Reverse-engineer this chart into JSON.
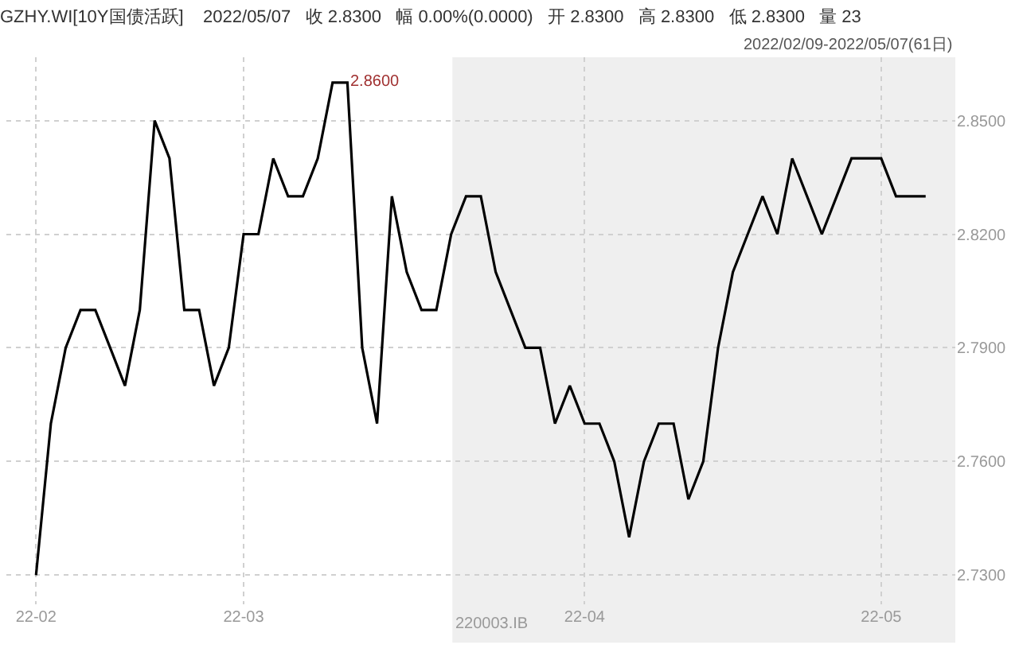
{
  "chart_data": {
    "type": "line",
    "title": "GZHY.WI[10Y国债活跃]    2022/05/07   收 2.8300   幅 0.00%(0.0000)   开 2.8300   高 2.8300   低 2.8300   量 23",
    "subtitle": "2022/02/09-2022/05/07(61日)",
    "categories": [
      "22-02",
      null,
      null,
      null,
      null,
      null,
      null,
      null,
      null,
      null,
      null,
      null,
      null,
      null,
      "22-03",
      null,
      null,
      null,
      null,
      null,
      null,
      null,
      null,
      null,
      null,
      null,
      null,
      null,
      null,
      null,
      null,
      null,
      null,
      null,
      null,
      null,
      null,
      "22-04",
      null,
      null,
      null,
      null,
      null,
      null,
      null,
      null,
      null,
      null,
      null,
      null,
      null,
      null,
      null,
      null,
      null,
      null,
      null,
      "22-05",
      null,
      null,
      null
    ],
    "series": [
      {
        "color": "#000000",
        "values": [
          2.73,
          2.77,
          2.79,
          2.8,
          2.8,
          2.79,
          2.78,
          2.8,
          2.85,
          2.84,
          2.8,
          2.8,
          2.78,
          2.79,
          2.82,
          2.82,
          2.84,
          2.83,
          2.83,
          2.84,
          2.86,
          2.86,
          2.79,
          2.77,
          2.83,
          2.81,
          2.8,
          2.8,
          2.82,
          2.83,
          2.83,
          2.81,
          2.8,
          2.79,
          2.79,
          2.77,
          2.78,
          2.77,
          2.77,
          2.76,
          2.74,
          2.76,
          2.77,
          2.77,
          2.75,
          2.76,
          2.79,
          2.81,
          2.82,
          2.83,
          2.82,
          2.84,
          2.83,
          2.82,
          2.83,
          2.84,
          2.84,
          2.84,
          2.83,
          2.83,
          2.83
        ]
      }
    ],
    "ylim": [
      2.7223,
      2.8667
    ],
    "yticks": [
      {
        "value": 2.73,
        "label": "2.7300"
      },
      {
        "value": 2.76,
        "label": "2.7600"
      },
      {
        "value": 2.79,
        "label": "2.7900"
      },
      {
        "value": 2.82,
        "label": "2.8200"
      },
      {
        "value": 2.85,
        "label": "2.8500"
      }
    ],
    "annotations": [
      "2.8600",
      "220003.IB"
    ],
    "grid": true,
    "marker": "none",
    "line_style": "solid"
  }
}
